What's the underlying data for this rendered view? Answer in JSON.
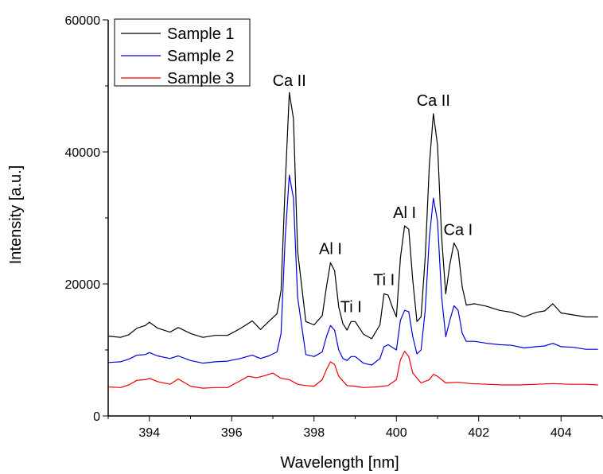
{
  "chart_data": {
    "type": "line",
    "xlabel": "Wavelength [nm]",
    "ylabel": "Intensity [a.u.]",
    "xlim": [
      393,
      405
    ],
    "ylim": [
      0,
      60000
    ],
    "x_ticks": [
      394,
      396,
      398,
      400,
      402,
      404
    ],
    "x_tick_labels": [
      "394",
      "396",
      "398",
      "400",
      "402",
      "404"
    ],
    "y_ticks": [
      0,
      20000,
      40000,
      60000
    ],
    "y_tick_labels": [
      "0",
      "20000",
      "40000",
      "60000"
    ],
    "grid": false,
    "legend_position": "top-left",
    "series": [
      {
        "name": "Sample 1",
        "color": "#000000",
        "points": [
          [
            393.0,
            12100
          ],
          [
            393.3,
            11900
          ],
          [
            393.5,
            12300
          ],
          [
            393.7,
            13300
          ],
          [
            393.9,
            13700
          ],
          [
            394.0,
            14200
          ],
          [
            394.2,
            13300
          ],
          [
            394.5,
            12700
          ],
          [
            394.7,
            13400
          ],
          [
            395.0,
            12500
          ],
          [
            395.3,
            11900
          ],
          [
            395.6,
            12200
          ],
          [
            395.9,
            12200
          ],
          [
            396.2,
            13200
          ],
          [
            396.5,
            14400
          ],
          [
            396.7,
            13100
          ],
          [
            396.9,
            14300
          ],
          [
            397.1,
            15500
          ],
          [
            397.2,
            19000
          ],
          [
            397.3,
            35000
          ],
          [
            397.4,
            49000
          ],
          [
            397.5,
            45000
          ],
          [
            397.6,
            25000
          ],
          [
            397.8,
            14300
          ],
          [
            398.0,
            13800
          ],
          [
            398.2,
            15200
          ],
          [
            398.3,
            19500
          ],
          [
            398.4,
            23200
          ],
          [
            398.5,
            22000
          ],
          [
            398.6,
            16500
          ],
          [
            398.7,
            14000
          ],
          [
            398.8,
            13000
          ],
          [
            398.9,
            14300
          ],
          [
            399.0,
            14300
          ],
          [
            399.2,
            12400
          ],
          [
            399.4,
            11700
          ],
          [
            399.6,
            13800
          ],
          [
            399.7,
            18500
          ],
          [
            399.8,
            18300
          ],
          [
            399.9,
            16500
          ],
          [
            400.0,
            15000
          ],
          [
            400.1,
            24000
          ],
          [
            400.2,
            28800
          ],
          [
            400.3,
            28300
          ],
          [
            400.4,
            20500
          ],
          [
            400.5,
            14300
          ],
          [
            400.6,
            15000
          ],
          [
            400.7,
            24000
          ],
          [
            400.8,
            38000
          ],
          [
            400.9,
            45800
          ],
          [
            401.0,
            41000
          ],
          [
            401.1,
            27000
          ],
          [
            401.2,
            18500
          ],
          [
            401.3,
            23000
          ],
          [
            401.4,
            26200
          ],
          [
            401.5,
            25000
          ],
          [
            401.6,
            19500
          ],
          [
            401.7,
            16800
          ],
          [
            401.9,
            17000
          ],
          [
            402.2,
            16600
          ],
          [
            402.5,
            16000
          ],
          [
            402.8,
            15700
          ],
          [
            403.1,
            15000
          ],
          [
            403.4,
            15700
          ],
          [
            403.6,
            15900
          ],
          [
            403.8,
            17000
          ],
          [
            404.0,
            15600
          ],
          [
            404.3,
            15300
          ],
          [
            404.6,
            15000
          ],
          [
            404.9,
            15000
          ]
        ]
      },
      {
        "name": "Sample 2",
        "color": "#0000dd",
        "points": [
          [
            393.0,
            8100
          ],
          [
            393.3,
            8200
          ],
          [
            393.5,
            8600
          ],
          [
            393.7,
            9200
          ],
          [
            393.9,
            9300
          ],
          [
            394.0,
            9600
          ],
          [
            394.2,
            9100
          ],
          [
            394.5,
            8700
          ],
          [
            394.7,
            9100
          ],
          [
            395.0,
            8400
          ],
          [
            395.3,
            8000
          ],
          [
            395.6,
            8200
          ],
          [
            395.9,
            8300
          ],
          [
            396.2,
            8700
          ],
          [
            396.5,
            9200
          ],
          [
            396.7,
            8700
          ],
          [
            396.9,
            9100
          ],
          [
            397.1,
            9700
          ],
          [
            397.2,
            12500
          ],
          [
            397.3,
            27000
          ],
          [
            397.4,
            36500
          ],
          [
            397.5,
            33000
          ],
          [
            397.6,
            18000
          ],
          [
            397.8,
            9300
          ],
          [
            398.0,
            9000
          ],
          [
            398.2,
            9700
          ],
          [
            398.3,
            12000
          ],
          [
            398.4,
            13700
          ],
          [
            398.5,
            13000
          ],
          [
            398.6,
            10000
          ],
          [
            398.7,
            8700
          ],
          [
            398.8,
            8400
          ],
          [
            398.9,
            9000
          ],
          [
            399.0,
            9000
          ],
          [
            399.2,
            8000
          ],
          [
            399.4,
            7700
          ],
          [
            399.6,
            8700
          ],
          [
            399.7,
            10500
          ],
          [
            399.8,
            10800
          ],
          [
            399.9,
            10400
          ],
          [
            400.0,
            10000
          ],
          [
            400.1,
            14500
          ],
          [
            400.2,
            16000
          ],
          [
            400.3,
            15800
          ],
          [
            400.4,
            12000
          ],
          [
            400.5,
            9400
          ],
          [
            400.6,
            10000
          ],
          [
            400.7,
            16000
          ],
          [
            400.8,
            27000
          ],
          [
            400.9,
            33000
          ],
          [
            401.0,
            29500
          ],
          [
            401.1,
            18000
          ],
          [
            401.2,
            12000
          ],
          [
            401.3,
            14500
          ],
          [
            401.4,
            16700
          ],
          [
            401.5,
            16000
          ],
          [
            401.6,
            12500
          ],
          [
            401.7,
            11300
          ],
          [
            401.9,
            11300
          ],
          [
            402.2,
            11000
          ],
          [
            402.5,
            10800
          ],
          [
            402.8,
            10700
          ],
          [
            403.1,
            10300
          ],
          [
            403.4,
            10500
          ],
          [
            403.6,
            10600
          ],
          [
            403.8,
            11000
          ],
          [
            404.0,
            10500
          ],
          [
            404.3,
            10400
          ],
          [
            404.6,
            10100
          ],
          [
            404.9,
            10100
          ]
        ]
      },
      {
        "name": "Sample 3",
        "color": "#ee0000",
        "points": [
          [
            393.0,
            4400
          ],
          [
            393.3,
            4300
          ],
          [
            393.5,
            4700
          ],
          [
            393.7,
            5400
          ],
          [
            393.9,
            5500
          ],
          [
            394.0,
            5700
          ],
          [
            394.2,
            5200
          ],
          [
            394.5,
            4800
          ],
          [
            394.7,
            5600
          ],
          [
            395.0,
            4500
          ],
          [
            395.3,
            4200
          ],
          [
            395.6,
            4300
          ],
          [
            395.9,
            4300
          ],
          [
            396.2,
            5300
          ],
          [
            396.4,
            6000
          ],
          [
            396.6,
            5800
          ],
          [
            396.8,
            6100
          ],
          [
            397.0,
            6500
          ],
          [
            397.2,
            5700
          ],
          [
            397.4,
            5500
          ],
          [
            397.6,
            4800
          ],
          [
            397.8,
            4600
          ],
          [
            398.0,
            4500
          ],
          [
            398.2,
            5500
          ],
          [
            398.3,
            7000
          ],
          [
            398.4,
            8200
          ],
          [
            398.5,
            7800
          ],
          [
            398.6,
            6000
          ],
          [
            398.8,
            4600
          ],
          [
            399.0,
            4500
          ],
          [
            399.2,
            4300
          ],
          [
            399.5,
            4400
          ],
          [
            399.8,
            4600
          ],
          [
            400.0,
            5500
          ],
          [
            400.1,
            8500
          ],
          [
            400.2,
            9800
          ],
          [
            400.3,
            9000
          ],
          [
            400.4,
            6500
          ],
          [
            400.6,
            5000
          ],
          [
            400.8,
            5500
          ],
          [
            400.9,
            6300
          ],
          [
            401.0,
            6000
          ],
          [
            401.2,
            5000
          ],
          [
            401.5,
            5100
          ],
          [
            401.8,
            4900
          ],
          [
            402.2,
            4800
          ],
          [
            402.6,
            4700
          ],
          [
            403.0,
            4700
          ],
          [
            403.4,
            4800
          ],
          [
            403.8,
            4900
          ],
          [
            404.2,
            4800
          ],
          [
            404.6,
            4800
          ],
          [
            404.9,
            4700
          ]
        ]
      }
    ],
    "annotations": [
      {
        "text": "Ca II",
        "x": 397.4,
        "y": 50000
      },
      {
        "text": "Al I",
        "x": 398.4,
        "y": 24500
      },
      {
        "text": "Ti I",
        "x": 398.9,
        "y": 15700
      },
      {
        "text": "Ti I",
        "x": 399.7,
        "y": 19800
      },
      {
        "text": "Al I",
        "x": 400.2,
        "y": 30000
      },
      {
        "text": "Ca II",
        "x": 400.9,
        "y": 47000
      },
      {
        "text": "Ca I",
        "x": 401.5,
        "y": 27400
      }
    ]
  }
}
